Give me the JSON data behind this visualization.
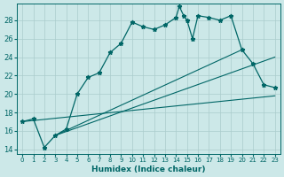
{
  "title": "",
  "xlabel": "Humidex (Indice chaleur)",
  "ylabel": "",
  "bg_color": "#cce8e8",
  "grid_color": "#aacccc",
  "line_color": "#006666",
  "xlim": [
    -0.5,
    23.5
  ],
  "ylim": [
    13.5,
    29.8
  ],
  "xticks": [
    0,
    1,
    2,
    3,
    4,
    5,
    6,
    7,
    8,
    9,
    10,
    11,
    12,
    13,
    14,
    15,
    16,
    17,
    18,
    19,
    20,
    21,
    22,
    23
  ],
  "yticks": [
    14,
    16,
    18,
    20,
    22,
    24,
    26,
    28
  ],
  "main_series": [
    [
      0,
      17.0
    ],
    [
      1,
      17.3
    ],
    [
      2,
      14.2
    ],
    [
      3,
      15.5
    ],
    [
      4,
      16.2
    ],
    [
      5,
      20.0
    ],
    [
      6,
      21.8
    ],
    [
      7,
      22.3
    ],
    [
      8,
      24.5
    ],
    [
      9,
      25.5
    ],
    [
      10,
      27.8
    ],
    [
      11,
      27.3
    ],
    [
      12,
      27.0
    ],
    [
      13,
      27.5
    ],
    [
      14,
      28.3
    ],
    [
      14.3,
      29.5
    ],
    [
      14.7,
      28.5
    ],
    [
      15,
      28.0
    ],
    [
      15.5,
      26.0
    ],
    [
      16,
      28.5
    ],
    [
      17,
      28.3
    ],
    [
      18,
      28.0
    ],
    [
      19,
      28.5
    ],
    [
      20,
      24.8
    ],
    [
      21,
      23.3
    ],
    [
      22,
      21.0
    ],
    [
      23,
      20.7
    ]
  ],
  "line1": [
    [
      0,
      17.0
    ],
    [
      23,
      19.8
    ]
  ],
  "line2": [
    [
      3,
      15.5
    ],
    [
      20,
      24.8
    ]
  ],
  "line3": [
    [
      3,
      15.5
    ],
    [
      23,
      24.0
    ]
  ]
}
